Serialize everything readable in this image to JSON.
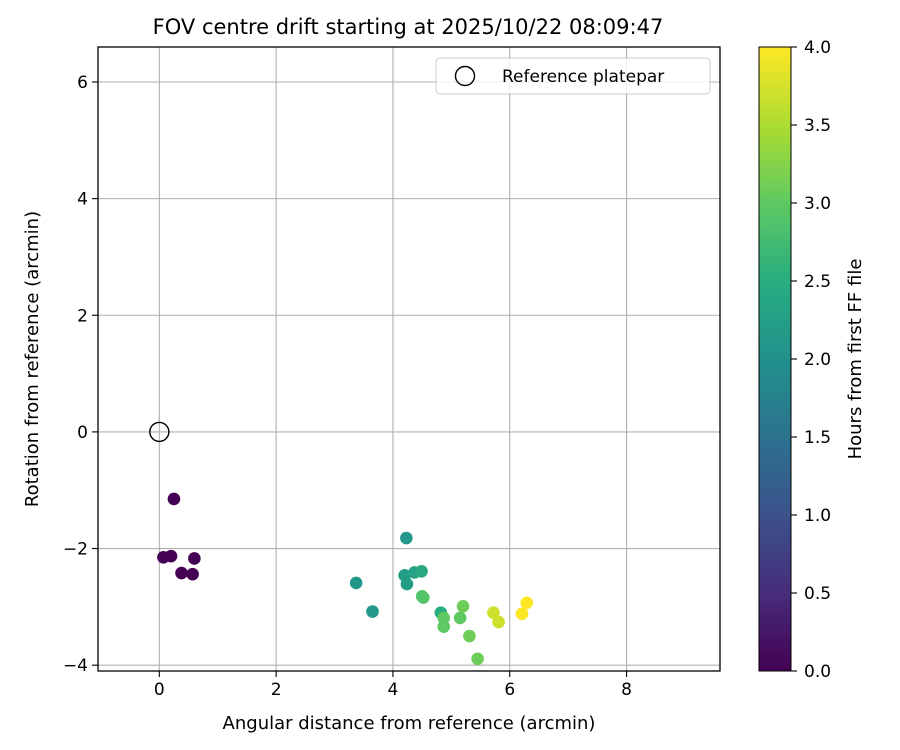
{
  "chart_data": {
    "type": "scatter",
    "title": "FOV centre drift starting at 2025/10/22 08:09:47",
    "xlabel": "Angular distance from reference (arcmin)",
    "ylabel": "Rotation from reference (arcmin)",
    "xlim": [
      -1.05,
      9.6
    ],
    "ylim": [
      -4.1,
      6.6
    ],
    "xticks": [
      0,
      2,
      4,
      6,
      8
    ],
    "yticks": [
      -4,
      -2,
      0,
      2,
      4,
      6
    ],
    "grid": true,
    "legend": {
      "placement": "upper right",
      "entries": [
        "Reference platepar"
      ]
    },
    "reference_point": {
      "x": 0,
      "y": 0,
      "name": "Reference platepar"
    },
    "colorbar": {
      "label": "Hours from first FF file",
      "colormap": "viridis",
      "range": [
        0.0,
        4.0
      ],
      "ticks": [
        0.0,
        0.5,
        1.0,
        1.5,
        2.0,
        2.5,
        3.0,
        3.5,
        4.0
      ]
    },
    "points": [
      {
        "x": 0.25,
        "y": -1.15,
        "c": 0.0
      },
      {
        "x": 0.07,
        "y": -2.15,
        "c": 0.0
      },
      {
        "x": 0.2,
        "y": -2.13,
        "c": 0.0
      },
      {
        "x": 0.6,
        "y": -2.17,
        "c": 0.0
      },
      {
        "x": 0.38,
        "y": -2.42,
        "c": 0.0
      },
      {
        "x": 0.57,
        "y": -2.44,
        "c": 0.0
      },
      {
        "x": 4.23,
        "y": -1.82,
        "c": 2.1
      },
      {
        "x": 3.37,
        "y": -2.59,
        "c": 2.1
      },
      {
        "x": 3.65,
        "y": -3.08,
        "c": 2.1
      },
      {
        "x": 4.2,
        "y": -2.46,
        "c": 2.2
      },
      {
        "x": 4.24,
        "y": -2.61,
        "c": 2.2
      },
      {
        "x": 4.37,
        "y": -2.41,
        "c": 2.3
      },
      {
        "x": 4.49,
        "y": -2.39,
        "c": 2.4
      },
      {
        "x": 4.5,
        "y": -2.82,
        "c": 2.9
      },
      {
        "x": 4.52,
        "y": -2.84,
        "c": 2.9
      },
      {
        "x": 4.82,
        "y": -3.1,
        "c": 2.5
      },
      {
        "x": 4.87,
        "y": -3.19,
        "c": 3.0
      },
      {
        "x": 4.87,
        "y": -3.34,
        "c": 3.0
      },
      {
        "x": 5.15,
        "y": -3.19,
        "c": 3.0
      },
      {
        "x": 5.2,
        "y": -2.99,
        "c": 3.1
      },
      {
        "x": 5.31,
        "y": -3.5,
        "c": 3.1
      },
      {
        "x": 5.45,
        "y": -3.89,
        "c": 3.1
      },
      {
        "x": 5.72,
        "y": -3.1,
        "c": 3.7
      },
      {
        "x": 5.81,
        "y": -3.26,
        "c": 3.7
      },
      {
        "x": 6.21,
        "y": -3.12,
        "c": 4.0
      },
      {
        "x": 6.29,
        "y": -2.93,
        "c": 4.0
      }
    ]
  }
}
